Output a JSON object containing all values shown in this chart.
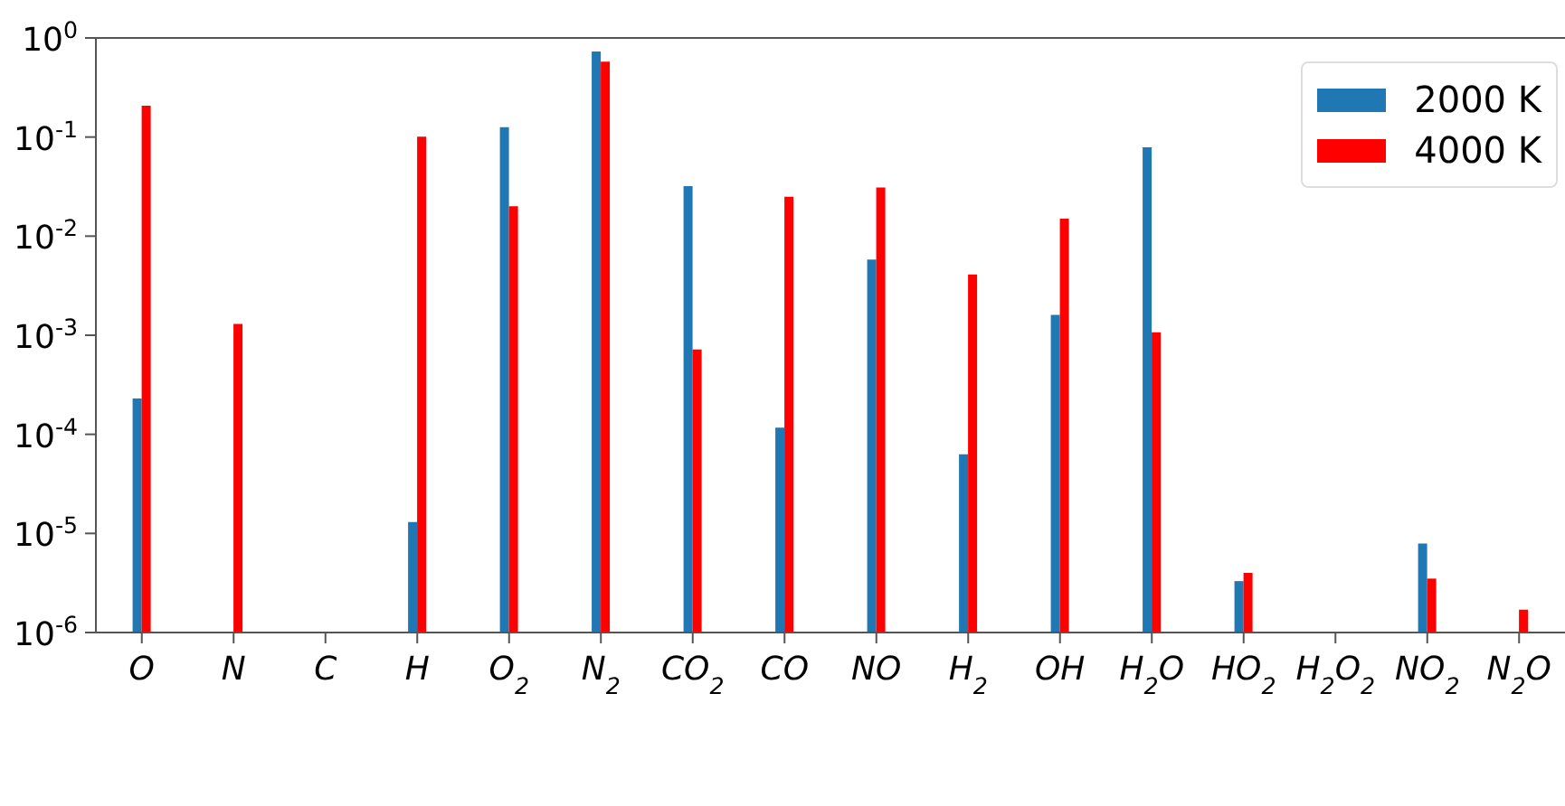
{
  "chart_data": {
    "type": "bar",
    "categories": [
      "O",
      "N",
      "C",
      "H",
      "O$_{2}$",
      "N$_{2}$",
      "CO$_{2}$",
      "CO",
      "NO",
      "H$_{2}$",
      "OH",
      "H$_{2}$O",
      "HO$_{2}$",
      "H$_{2}$O$_{2}$",
      "NO$_{2}$",
      "N$_{2}$O"
    ],
    "series": [
      {
        "name": "2000 K",
        "color": "#1f77b4",
        "values": [
          0.00023,
          null,
          null,
          1.3e-05,
          0.126,
          0.73,
          0.032,
          0.000117,
          0.0058,
          6.3e-05,
          0.0016,
          0.079,
          3.3e-06,
          null,
          7.9e-06,
          null
        ]
      },
      {
        "name": "4000 K",
        "color": "#ff0000",
        "values": [
          0.207,
          0.0013,
          null,
          0.101,
          0.02,
          0.575,
          0.00072,
          0.025,
          0.031,
          0.0041,
          0.015,
          0.00107,
          4e-06,
          null,
          3.5e-06,
          1.7e-06
        ]
      }
    ],
    "log": "y",
    "ylim": [
      1e-06,
      1
    ],
    "yticks": [
      {
        "value": 1e-06,
        "label": "10$^{-6}$"
      },
      {
        "value": 1e-05,
        "label": "10$^{-5}$"
      },
      {
        "value": 0.0001,
        "label": "10$^{-4}$"
      },
      {
        "value": 0.001,
        "label": "10$^{-3}$"
      },
      {
        "value": 0.01,
        "label": "10$^{-2}$"
      },
      {
        "value": 0.1,
        "label": "10$^{-1}$"
      },
      {
        "value": 1,
        "label": "10$^{0}$"
      }
    ],
    "legend": "top right",
    "grid": false
  }
}
